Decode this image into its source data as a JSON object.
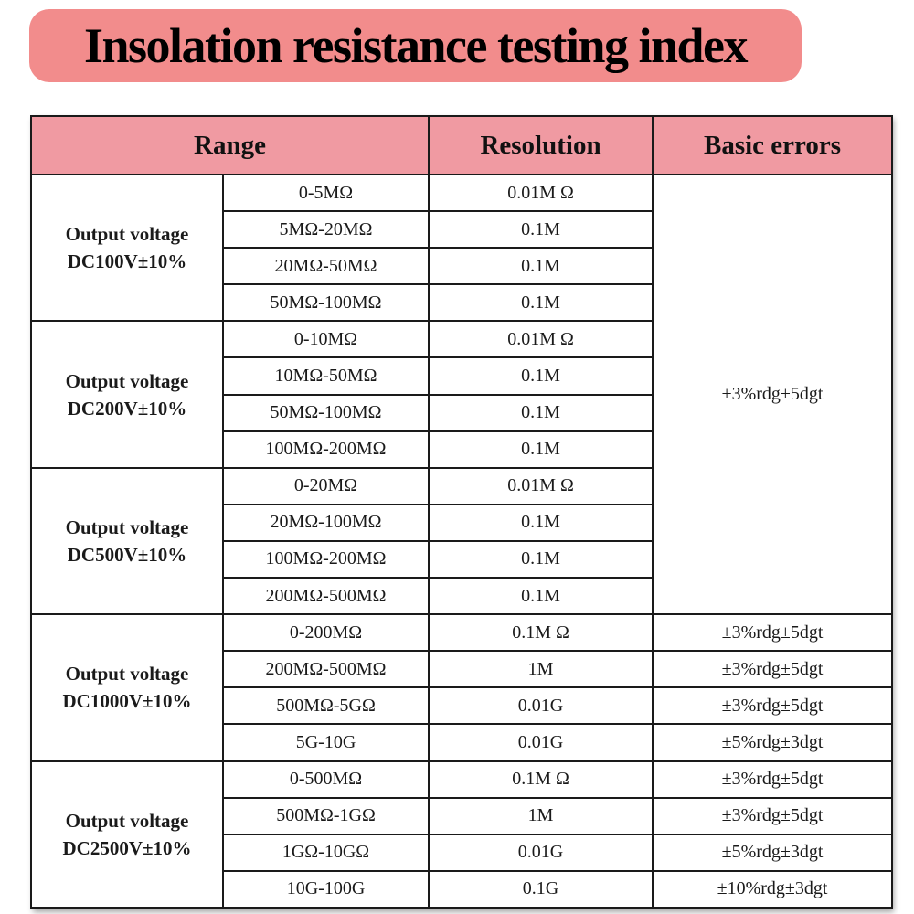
{
  "title": "Insolation resistance testing index",
  "headers": {
    "range": "Range",
    "resolution": "Resolution",
    "errors": "Basic errors"
  },
  "shared_error": "±3%rdg±5dgt",
  "groups": [
    {
      "label_line1": "Output voltage",
      "label_line2": "DC100V±10%",
      "rows": [
        {
          "range": "0-5MΩ",
          "resolution": "0.01M Ω"
        },
        {
          "range": "5MΩ-20MΩ",
          "resolution": "0.1M"
        },
        {
          "range": "20MΩ-50MΩ",
          "resolution": "0.1M"
        },
        {
          "range": "50MΩ-100MΩ",
          "resolution": "0.1M"
        }
      ]
    },
    {
      "label_line1": "Output voltage",
      "label_line2": "DC200V±10%",
      "rows": [
        {
          "range": "0-10MΩ",
          "resolution": "0.01M Ω"
        },
        {
          "range": "10MΩ-50MΩ",
          "resolution": "0.1M"
        },
        {
          "range": "50MΩ-100MΩ",
          "resolution": "0.1M"
        },
        {
          "range": "100MΩ-200MΩ",
          "resolution": "0.1M"
        }
      ]
    },
    {
      "label_line1": "Output voltage",
      "label_line2": "DC500V±10%",
      "rows": [
        {
          "range": "0-20MΩ",
          "resolution": "0.01M Ω"
        },
        {
          "range": "20MΩ-100MΩ",
          "resolution": "0.1M"
        },
        {
          "range": "100MΩ-200MΩ",
          "resolution": "0.1M"
        },
        {
          "range": "200MΩ-500MΩ",
          "resolution": "0.1M"
        }
      ]
    },
    {
      "label_line1": "Output voltage",
      "label_line2": "DC1000V±10%",
      "rows": [
        {
          "range": "0-200MΩ",
          "resolution": "0.1M Ω",
          "error": "±3%rdg±5dgt"
        },
        {
          "range": "200MΩ-500MΩ",
          "resolution": "1M",
          "error": "±3%rdg±5dgt"
        },
        {
          "range": "500MΩ-5GΩ",
          "resolution": "0.01G",
          "error": "±3%rdg±5dgt"
        },
        {
          "range": "5G-10G",
          "resolution": "0.01G",
          "error": "±5%rdg±3dgt"
        }
      ]
    },
    {
      "label_line1": "Output voltage",
      "label_line2": "DC2500V±10%",
      "rows": [
        {
          "range": "0-500MΩ",
          "resolution": "0.1M Ω",
          "error": "±3%rdg±5dgt"
        },
        {
          "range": "500MΩ-1GΩ",
          "resolution": "1M",
          "error": "±3%rdg±5dgt"
        },
        {
          "range": "1GΩ-10GΩ",
          "resolution": "0.01G",
          "error": "±5%rdg±3dgt"
        },
        {
          "range": "10G-100G",
          "resolution": "0.1G",
          "error": "±10%rdg±3dgt"
        }
      ]
    }
  ],
  "colors": {
    "title_banner": "#f28c8c",
    "header_fill": "#f09aa2",
    "border": "#1a1a1a"
  }
}
